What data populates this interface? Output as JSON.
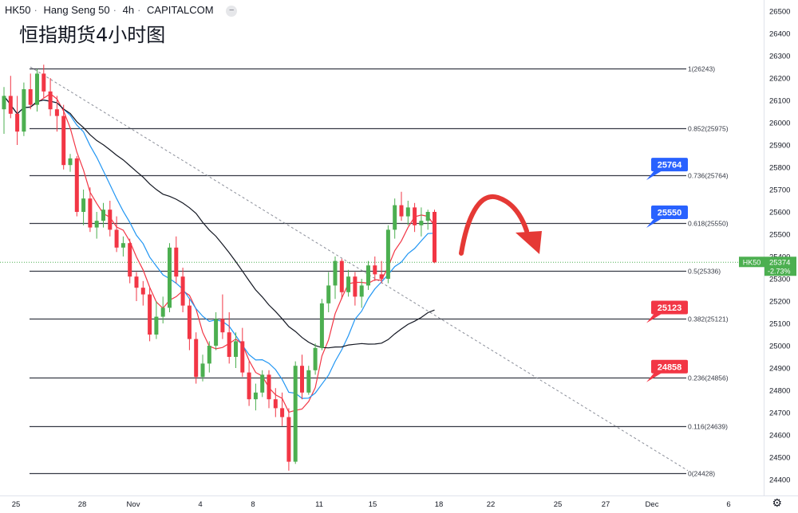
{
  "header": {
    "symbol": "HK50",
    "name": "Hang Seng 50",
    "interval": "4h",
    "source": "CAPITALCOM",
    "collapse_icon": "minus-icon"
  },
  "title": "恒指期货4小时图",
  "settings_icon": "gear-icon",
  "chart_data": {
    "type": "candlestick",
    "price_axis": {
      "min": 24400,
      "max": 26500,
      "ticks": [
        24400,
        24500,
        24600,
        24700,
        24800,
        24900,
        25000,
        25100,
        25200,
        25300,
        25400,
        25500,
        25600,
        25700,
        25800,
        25900,
        26000,
        26100,
        26200,
        26300,
        26400,
        26500
      ]
    },
    "time_axis": {
      "labels": [
        "25",
        "28",
        "Nov",
        "4",
        "8",
        "11",
        "15",
        "18",
        "22",
        "25",
        "27",
        "Dec",
        "6"
      ]
    },
    "fib_levels": [
      {
        "ratio": "1",
        "price": 26243
      },
      {
        "ratio": "0.852",
        "price": 25975
      },
      {
        "ratio": "0.736",
        "price": 25764
      },
      {
        "ratio": "0.618",
        "price": 25550
      },
      {
        "ratio": "0.5",
        "price": 25336
      },
      {
        "ratio": "0.382",
        "price": 25121
      },
      {
        "ratio": "0.236",
        "price": 24856
      },
      {
        "ratio": "0.116",
        "price": 24639
      },
      {
        "ratio": "0",
        "price": 24428
      }
    ],
    "callouts": [
      {
        "text": "25764",
        "color": "#2962ff",
        "price": 25764
      },
      {
        "text": "25550",
        "color": "#2962ff",
        "price": 25550
      },
      {
        "text": "25123",
        "color": "#f23645",
        "price": 25123
      },
      {
        "text": "24858",
        "color": "#f23645",
        "price": 24858
      }
    ],
    "last_price": {
      "symbol": "HK50",
      "price": "25374",
      "change": "-2.73%",
      "value": 25374,
      "color": "#4caf50"
    },
    "candles": [
      [
        26060,
        26160,
        25950,
        26120
      ],
      [
        26120,
        26210,
        26020,
        26040
      ],
      [
        26040,
        26120,
        25900,
        25960
      ],
      [
        25960,
        26180,
        25940,
        26150
      ],
      [
        26150,
        26220,
        26060,
        26080
      ],
      [
        26080,
        26240,
        26050,
        26220
      ],
      [
        26220,
        26260,
        26110,
        26140
      ],
      [
        26140,
        26200,
        26030,
        26060
      ],
      [
        26060,
        26120,
        25960,
        26030
      ],
      [
        26030,
        26080,
        25790,
        25810
      ],
      [
        25810,
        25860,
        25780,
        25840
      ],
      [
        25840,
        25850,
        25580,
        25600
      ],
      [
        25600,
        25700,
        25540,
        25660
      ],
      [
        25660,
        25710,
        25510,
        25530
      ],
      [
        25530,
        25600,
        25480,
        25560
      ],
      [
        25560,
        25640,
        25530,
        25610
      ],
      [
        25610,
        25650,
        25490,
        25520
      ],
      [
        25520,
        25580,
        25420,
        25440
      ],
      [
        25440,
        25490,
        25400,
        25460
      ],
      [
        25460,
        25480,
        25280,
        25310
      ],
      [
        25310,
        25330,
        25200,
        25260
      ],
      [
        25260,
        25290,
        25180,
        25230
      ],
      [
        25230,
        25260,
        25020,
        25050
      ],
      [
        25050,
        25200,
        25030,
        25130
      ],
      [
        25130,
        25220,
        25100,
        25170
      ],
      [
        25170,
        25460,
        25150,
        25440
      ],
      [
        25440,
        25490,
        25280,
        25310
      ],
      [
        25310,
        25350,
        25150,
        25180
      ],
      [
        25180,
        25210,
        24980,
        25030
      ],
      [
        25030,
        25060,
        24830,
        24860
      ],
      [
        24860,
        24960,
        24840,
        24920
      ],
      [
        24920,
        25020,
        24880,
        25000
      ],
      [
        25000,
        25150,
        24980,
        25120
      ],
      [
        25120,
        25230,
        25030,
        25060
      ],
      [
        25060,
        25150,
        24920,
        24950
      ],
      [
        24950,
        25060,
        24900,
        25020
      ],
      [
        25020,
        25080,
        24860,
        24880
      ],
      [
        24880,
        24930,
        24730,
        24760
      ],
      [
        24760,
        24830,
        24710,
        24790
      ],
      [
        24790,
        24890,
        24770,
        24870
      ],
      [
        24870,
        24890,
        24720,
        24760
      ],
      [
        24760,
        24810,
        24680,
        24720
      ],
      [
        24720,
        24790,
        24640,
        24680
      ],
      [
        24680,
        24720,
        24440,
        24480
      ],
      [
        24480,
        24930,
        24470,
        24910
      ],
      [
        24910,
        24960,
        24760,
        24790
      ],
      [
        24790,
        24910,
        24780,
        24890
      ],
      [
        24890,
        25010,
        24870,
        24990
      ],
      [
        24990,
        25210,
        24980,
        25190
      ],
      [
        25190,
        25330,
        25150,
        25270
      ],
      [
        25270,
        25400,
        25210,
        25380
      ],
      [
        25380,
        25390,
        25210,
        25240
      ],
      [
        25240,
        25340,
        25220,
        25310
      ],
      [
        25310,
        25330,
        25180,
        25220
      ],
      [
        25220,
        25300,
        25170,
        25270
      ],
      [
        25270,
        25380,
        25250,
        25360
      ],
      [
        25360,
        25400,
        25290,
        25320
      ],
      [
        25320,
        25380,
        25280,
        25300
      ],
      [
        25300,
        25540,
        25280,
        25520
      ],
      [
        25520,
        25660,
        25480,
        25630
      ],
      [
        25630,
        25690,
        25560,
        25580
      ],
      [
        25580,
        25650,
        25540,
        25620
      ],
      [
        25620,
        25640,
        25510,
        25540
      ],
      [
        25540,
        25620,
        25490,
        25560
      ],
      [
        25560,
        25610,
        25520,
        25600
      ],
      [
        25600,
        25610,
        25370,
        25374
      ]
    ]
  }
}
